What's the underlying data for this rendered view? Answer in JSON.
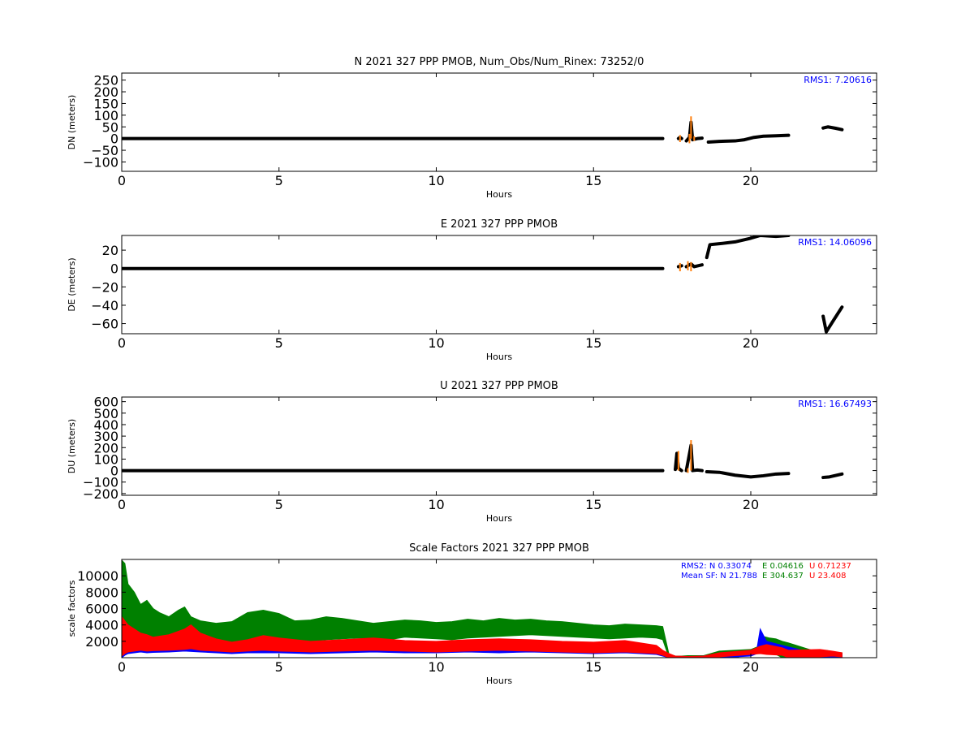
{
  "chart_data": [
    {
      "type": "scatter",
      "title": "N 2021 327 PPP  PMOB, Num_Obs/Num_Rinex: 73252/0",
      "xlabel": "Hours",
      "ylabel": "DN (meters)",
      "xlim": [
        0,
        24
      ],
      "ylim": [
        -140,
        280
      ],
      "xticks": [
        0,
        5,
        10,
        15,
        20
      ],
      "yticks": [
        -100,
        -50,
        0,
        50,
        100,
        150,
        200,
        250
      ],
      "ytick_labels": [
        "−100",
        "−50",
        "0",
        "50",
        "100",
        "150",
        "200",
        "250"
      ],
      "annotation": {
        "text": "RMS1:  7.20616",
        "color": "#0000ff"
      },
      "series": [
        {
          "color": "#000000",
          "segments": [
            {
              "x": [
                0,
                17.2
              ],
              "y": [
                0,
                0
              ]
            },
            {
              "x": [
                17.7,
                17.75,
                17.8
              ],
              "y": [
                0,
                5,
                0
              ]
            },
            {
              "x": [
                17.95,
                18.05,
                18.1,
                18.15,
                18.3,
                18.45
              ],
              "y": [
                -10,
                5,
                70,
                -5,
                0,
                2
              ]
            },
            {
              "x": [
                18.65,
                19.0,
                19.5,
                19.8,
                20.1,
                20.4,
                20.8,
                21.2
              ],
              "y": [
                -15,
                -12,
                -10,
                -5,
                5,
                10,
                12,
                14
              ]
            },
            {
              "x": [
                22.3,
                22.45,
                22.7,
                22.9
              ],
              "y": [
                45,
                50,
                44,
                38
              ]
            }
          ]
        },
        {
          "color": "#ff7f0e",
          "spikes": [
            {
              "x": 17.75,
              "y": [
                -15,
                15
              ]
            },
            {
              "x": 18.05,
              "y": [
                -20,
                20
              ]
            },
            {
              "x": 18.1,
              "y": [
                0,
                95
              ]
            },
            {
              "x": 18.2,
              "y": [
                -10,
                10
              ]
            }
          ]
        }
      ]
    },
    {
      "type": "scatter",
      "title": "E 2021 327 PPP  PMOB",
      "xlabel": "Hours",
      "ylabel": "DE (meters)",
      "xlim": [
        0,
        24
      ],
      "ylim": [
        -71,
        36
      ],
      "xticks": [
        0,
        5,
        10,
        15,
        20
      ],
      "yticks": [
        -60,
        -40,
        -20,
        0,
        20
      ],
      "ytick_labels": [
        "−60",
        "−40",
        "−20",
        "0",
        "20"
      ],
      "annotation": {
        "text": "RMS1: 14.06096",
        "color": "#0000ff"
      },
      "series": [
        {
          "color": "#000000",
          "segments": [
            {
              "x": [
                0,
                17.2
              ],
              "y": [
                0,
                0
              ]
            },
            {
              "x": [
                17.7,
                17.8
              ],
              "y": [
                2,
                3
              ]
            },
            {
              "x": [
                17.95,
                18.1,
                18.2,
                18.45
              ],
              "y": [
                2,
                5,
                2,
                4
              ]
            },
            {
              "x": [
                18.6,
                18.7,
                19.0,
                19.5,
                20.0,
                20.3,
                20.8,
                21.2
              ],
              "y": [
                12,
                26,
                27,
                29,
                33,
                36,
                35,
                36
              ]
            },
            {
              "x": [
                22.3,
                22.4,
                22.6,
                22.9
              ],
              "y": [
                -52,
                -69,
                -58,
                -42
              ]
            }
          ]
        },
        {
          "color": "#ff7f0e",
          "spikes": [
            {
              "x": 17.75,
              "y": [
                -3,
                6
              ]
            },
            {
              "x": 18.0,
              "y": [
                -2,
                8
              ]
            },
            {
              "x": 18.1,
              "y": [
                -3,
                7
              ]
            }
          ]
        }
      ]
    },
    {
      "type": "scatter",
      "title": "U 2021 327 PPP  PMOB",
      "xlabel": "Hours",
      "ylabel": "DU (meters)",
      "xlim": [
        0,
        24
      ],
      "ylim": [
        -215,
        640
      ],
      "xticks": [
        0,
        5,
        10,
        15,
        20
      ],
      "yticks": [
        -200,
        -100,
        0,
        100,
        200,
        300,
        400,
        500,
        600
      ],
      "ytick_labels": [
        "−200",
        "−100",
        "0",
        "100",
        "200",
        "300",
        "400",
        "500",
        "600"
      ],
      "annotation": {
        "text": "RMS1: 16.67493",
        "color": "#0000ff"
      },
      "series": [
        {
          "color": "#000000",
          "segments": [
            {
              "x": [
                0,
                17.2
              ],
              "y": [
                0,
                0
              ]
            },
            {
              "x": [
                17.6,
                17.65,
                17.7,
                17.8
              ],
              "y": [
                10,
                150,
                20,
                0
              ]
            },
            {
              "x": [
                17.95,
                18.1,
                18.15,
                18.3,
                18.45
              ],
              "y": [
                0,
                220,
                0,
                5,
                0
              ]
            },
            {
              "x": [
                18.6,
                19.0,
                19.5,
                20.0,
                20.4,
                20.8,
                21.2
              ],
              "y": [
                -10,
                -15,
                -40,
                -55,
                -45,
                -30,
                -25
              ]
            },
            {
              "x": [
                22.3,
                22.5,
                22.9
              ],
              "y": [
                -60,
                -55,
                -30
              ]
            }
          ]
        },
        {
          "color": "#ff7f0e",
          "spikes": [
            {
              "x": 17.7,
              "y": [
                0,
                170
              ]
            },
            {
              "x": 18.1,
              "y": [
                0,
                265
              ]
            },
            {
              "x": 18.0,
              "y": [
                -20,
                20
              ]
            }
          ]
        }
      ]
    },
    {
      "type": "line",
      "title": "Scale Factors 2021 327 PPP  PMOB",
      "xlabel": "Hours",
      "ylabel": "scale factors",
      "xlim": [
        0,
        24
      ],
      "ylim": [
        0,
        12000
      ],
      "xticks": [
        0,
        5,
        10,
        15,
        20
      ],
      "yticks": [
        2000,
        4000,
        6000,
        8000,
        10000
      ],
      "ytick_labels": [
        "2000",
        "4000",
        "6000",
        "8000",
        "10000"
      ],
      "annotation_lines": [
        {
          "parts": [
            {
              "text": "RMS2: N  0.33074",
              "color": "#0000ff"
            },
            {
              "text": "E  0.04616",
              "color": "#008000"
            },
            {
              "text": "U  0.71237",
              "color": "#ff0000"
            }
          ]
        },
        {
          "parts": [
            {
              "text": "Mean SF: N  21.788",
              "color": "#0000ff"
            },
            {
              "text": "E 304.637",
              "color": "#008000"
            },
            {
              "text": "U  23.408",
              "color": "#ff0000"
            }
          ]
        }
      ],
      "series": [
        {
          "color": "#008000",
          "x": [
            0,
            0.1,
            0.2,
            0.4,
            0.6,
            0.8,
            1.0,
            1.2,
            1.5,
            1.8,
            2.0,
            2.2,
            2.5,
            3.0,
            3.5,
            4.0,
            4.5,
            5.0,
            5.5,
            6.0,
            6.5,
            7.0,
            7.5,
            8.0,
            8.5,
            9.0,
            9.5,
            10.0,
            10.5,
            11.0,
            11.5,
            12.0,
            12.5,
            13.0,
            13.5,
            14.0,
            14.5,
            15.0,
            15.5,
            16.0,
            16.5,
            17.0,
            17.2,
            17.4,
            17.6,
            17.8,
            18.0,
            18.5,
            19.0,
            19.5,
            20.0,
            20.2,
            20.4,
            20.6,
            20.8,
            21.0,
            21.2,
            22.2,
            22.4,
            22.6,
            22.9
          ],
          "low": [
            0,
            1000,
            1200,
            1500,
            1800,
            1600,
            1700,
            1900,
            2000,
            1800,
            2200,
            2100,
            2000,
            2200,
            1900,
            2100,
            2300,
            2400,
            2200,
            2000,
            2200,
            2300,
            2400,
            2300,
            2200,
            2500,
            2400,
            2300,
            2200,
            2400,
            2500,
            2600,
            2700,
            2800,
            2700,
            2600,
            2500,
            2400,
            2300,
            2400,
            2500,
            2400,
            2200,
            0,
            0,
            0,
            0,
            0,
            0,
            0,
            500,
            700,
            600,
            500,
            400,
            0,
            0,
            0,
            0,
            0,
            0
          ],
          "high": [
            11900,
            11500,
            9000,
            8000,
            6500,
            7000,
            6000,
            5500,
            5000,
            5800,
            6200,
            5000,
            4500,
            4200,
            4400,
            5500,
            5800,
            5400,
            4500,
            4600,
            5000,
            4800,
            4500,
            4200,
            4400,
            4600,
            4500,
            4300,
            4400,
            4700,
            4500,
            4800,
            4600,
            4700,
            4500,
            4400,
            4200,
            4000,
            3900,
            4100,
            4000,
            3900,
            3800,
            400,
            200,
            200,
            250,
            250,
            800,
            900,
            1000,
            1300,
            2600,
            2400,
            2300,
            2000,
            1800,
            600,
            900,
            700,
            600
          ]
        },
        {
          "color": "#0000ff",
          "x": [
            0,
            0.1,
            0.2,
            0.4,
            0.6,
            0.8,
            1.0,
            1.5,
            2.0,
            2.5,
            3.0,
            3.5,
            4.0,
            5.0,
            6.0,
            7.0,
            8.0,
            9.0,
            10.0,
            11.0,
            12.0,
            13.0,
            14.0,
            15.0,
            16.0,
            17.0,
            17.2,
            17.4,
            17.6,
            18.0,
            18.5,
            19.0,
            20.0,
            20.2,
            20.3,
            20.5,
            21.0,
            21.2,
            22.2,
            22.6,
            22.9
          ],
          "low": [
            0,
            300,
            500,
            600,
            700,
            600,
            650,
            700,
            800,
            700,
            600,
            500,
            600,
            600,
            500,
            600,
            700,
            600,
            600,
            700,
            600,
            700,
            600,
            500,
            600,
            400,
            200,
            0,
            0,
            0,
            0,
            0,
            200,
            500,
            800,
            700,
            500,
            0,
            0,
            0,
            0
          ],
          "high": [
            3000,
            2500,
            2200,
            2000,
            1800,
            1700,
            1600,
            1700,
            1900,
            1600,
            1400,
            1200,
            1500,
            1600,
            1400,
            1500,
            1800,
            1600,
            1500,
            1700,
            1600,
            1800,
            1700,
            1500,
            1600,
            1100,
            700,
            300,
            100,
            100,
            200,
            500,
            700,
            1200,
            3500,
            2000,
            1500,
            1300,
            400,
            500,
            400
          ]
        },
        {
          "color": "#ff0000",
          "x": [
            0,
            0.1,
            0.2,
            0.4,
            0.6,
            0.8,
            1.0,
            1.5,
            2.0,
            2.2,
            2.5,
            3.0,
            3.5,
            4.0,
            4.5,
            5.0,
            6.0,
            7.0,
            8.0,
            9.0,
            10.0,
            11.0,
            12.0,
            13.0,
            14.0,
            15.0,
            16.0,
            17.0,
            17.2,
            17.4,
            17.6,
            18.0,
            18.5,
            19.0,
            20.0,
            20.3,
            20.5,
            21.0,
            21.2,
            22.2,
            22.6,
            22.9
          ],
          "low": [
            200,
            500,
            700,
            800,
            900,
            800,
            850,
            900,
            1000,
            1100,
            900,
            800,
            700,
            800,
            900,
            800,
            700,
            800,
            900,
            800,
            700,
            800,
            900,
            800,
            700,
            600,
            700,
            500,
            300,
            0,
            0,
            0,
            0,
            100,
            400,
            500,
            400,
            300,
            0,
            100,
            200,
            100
          ],
          "high": [
            5000,
            4500,
            4000,
            3500,
            3000,
            2800,
            2500,
            2800,
            3500,
            4000,
            3000,
            2300,
            1900,
            2200,
            2700,
            2400,
            2000,
            2200,
            2400,
            2100,
            2000,
            2200,
            2300,
            2200,
            2000,
            1900,
            2100,
            1500,
            900,
            500,
            200,
            150,
            200,
            600,
            900,
            1400,
            1600,
            1200,
            900,
            1000,
            800,
            600
          ]
        }
      ]
    }
  ]
}
